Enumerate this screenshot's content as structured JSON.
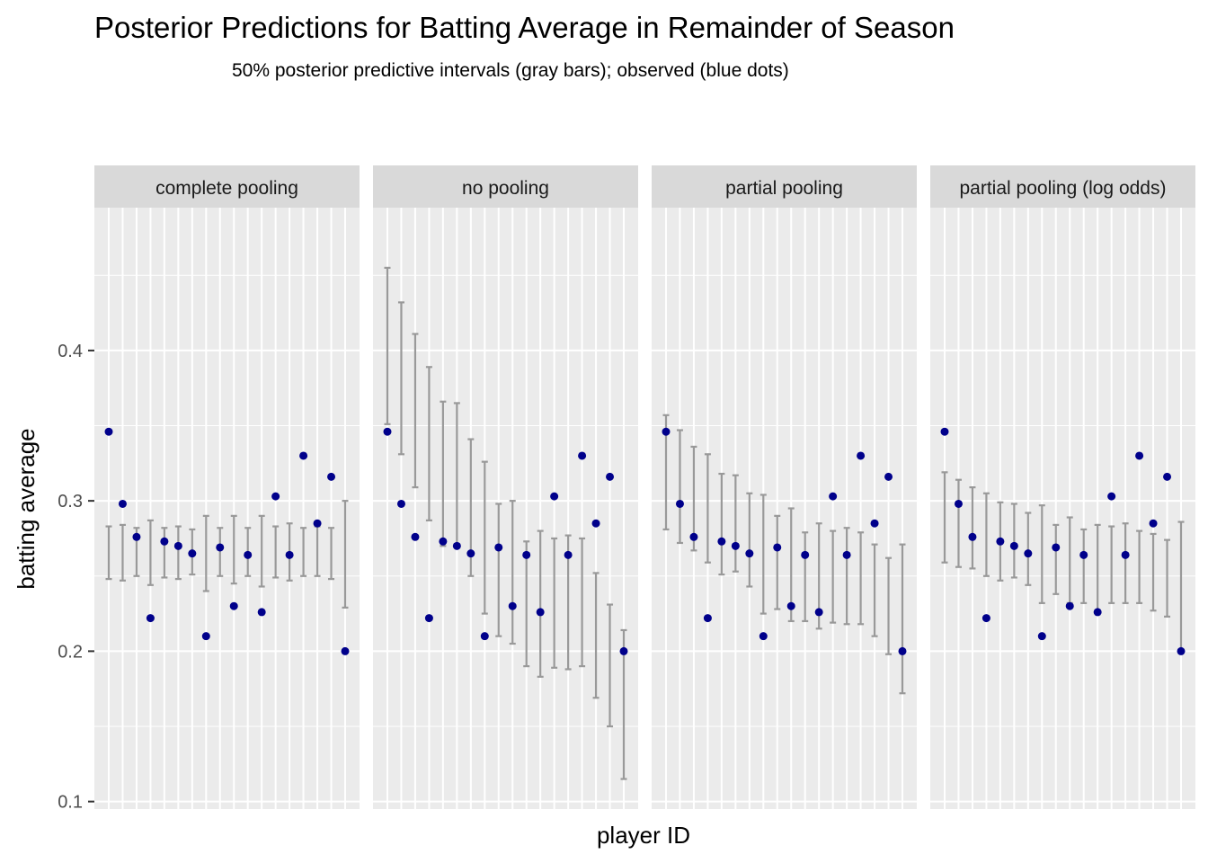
{
  "chart_data": {
    "type": "scatter",
    "title": "Posterior Predictions for Batting Average in Remainder of Season",
    "subtitle": "50% posterior predictive intervals (gray bars); observed (blue dots)",
    "xlabel": "player ID",
    "ylabel": "batting average",
    "ylim": [
      0.095,
      0.495
    ],
    "yticks": [
      0.1,
      0.2,
      0.3,
      0.4
    ],
    "ytick_labels": [
      "0.1",
      "0.2",
      "0.3",
      "0.4"
    ],
    "grid": true,
    "colors": {
      "panel_background": "#ebebeb",
      "strip_background": "#d9d9d9",
      "grid": "#ffffff",
      "interval": "#999999",
      "observed": "#00008b"
    },
    "observed": [
      0.346,
      0.298,
      0.276,
      0.222,
      0.273,
      0.27,
      0.265,
      0.21,
      0.269,
      0.23,
      0.264,
      0.226,
      0.303,
      0.264,
      0.33,
      0.285,
      0.316,
      0.2
    ],
    "facets": [
      {
        "label": "complete pooling",
        "intervals": [
          [
            0.248,
            0.283
          ],
          [
            0.247,
            0.284
          ],
          [
            0.25,
            0.282
          ],
          [
            0.244,
            0.287
          ],
          [
            0.249,
            0.282
          ],
          [
            0.248,
            0.283
          ],
          [
            0.251,
            0.281
          ],
          [
            0.24,
            0.29
          ],
          [
            0.25,
            0.282
          ],
          [
            0.245,
            0.29
          ],
          [
            0.25,
            0.282
          ],
          [
            0.243,
            0.29
          ],
          [
            0.249,
            0.283
          ],
          [
            0.247,
            0.285
          ],
          [
            0.25,
            0.282
          ],
          [
            0.25,
            0.283
          ],
          [
            0.248,
            0.282
          ],
          [
            0.229,
            0.3
          ]
        ]
      },
      {
        "label": "no pooling",
        "intervals": [
          [
            0.351,
            0.455
          ],
          [
            0.331,
            0.432
          ],
          [
            0.309,
            0.411
          ],
          [
            0.287,
            0.389
          ],
          [
            0.27,
            0.366
          ],
          [
            0.269,
            0.365
          ],
          [
            0.25,
            0.341
          ],
          [
            0.225,
            0.326
          ],
          [
            0.21,
            0.298
          ],
          [
            0.205,
            0.3
          ],
          [
            0.19,
            0.273
          ],
          [
            0.183,
            0.28
          ],
          [
            0.189,
            0.275
          ],
          [
            0.188,
            0.277
          ],
          [
            0.19,
            0.275
          ],
          [
            0.169,
            0.252
          ],
          [
            0.15,
            0.231
          ],
          [
            0.115,
            0.214
          ]
        ]
      },
      {
        "label": "partial pooling",
        "intervals": [
          [
            0.281,
            0.357
          ],
          [
            0.272,
            0.347
          ],
          [
            0.267,
            0.336
          ],
          [
            0.259,
            0.331
          ],
          [
            0.251,
            0.318
          ],
          [
            0.253,
            0.317
          ],
          [
            0.243,
            0.305
          ],
          [
            0.225,
            0.304
          ],
          [
            0.228,
            0.29
          ],
          [
            0.22,
            0.295
          ],
          [
            0.22,
            0.279
          ],
          [
            0.215,
            0.285
          ],
          [
            0.219,
            0.28
          ],
          [
            0.218,
            0.282
          ],
          [
            0.218,
            0.279
          ],
          [
            0.21,
            0.271
          ],
          [
            0.198,
            0.262
          ],
          [
            0.172,
            0.271
          ]
        ]
      },
      {
        "label": "partial pooling (log odds)",
        "intervals": [
          [
            0.259,
            0.319
          ],
          [
            0.256,
            0.314
          ],
          [
            0.255,
            0.309
          ],
          [
            0.25,
            0.305
          ],
          [
            0.247,
            0.299
          ],
          [
            0.249,
            0.298
          ],
          [
            0.244,
            0.292
          ],
          [
            0.232,
            0.297
          ],
          [
            0.238,
            0.284
          ],
          [
            0.232,
            0.289
          ],
          [
            0.232,
            0.281
          ],
          [
            0.226,
            0.284
          ],
          [
            0.232,
            0.283
          ],
          [
            0.232,
            0.285
          ],
          [
            0.232,
            0.28
          ],
          [
            0.227,
            0.278
          ],
          [
            0.223,
            0.274
          ],
          [
            0.2,
            0.286
          ]
        ]
      }
    ]
  }
}
